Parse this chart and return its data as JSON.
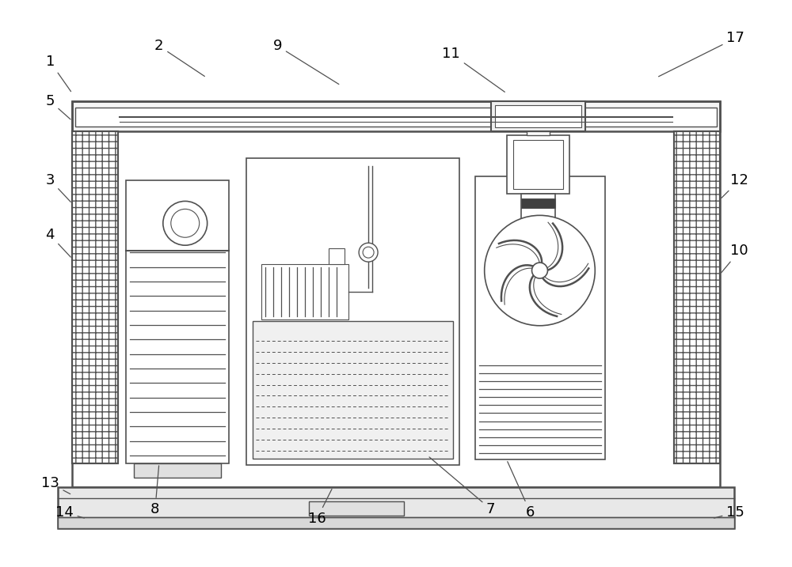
{
  "bg_color": "#ffffff",
  "lc": "#505050",
  "fig_width": 10.0,
  "fig_height": 7.17
}
